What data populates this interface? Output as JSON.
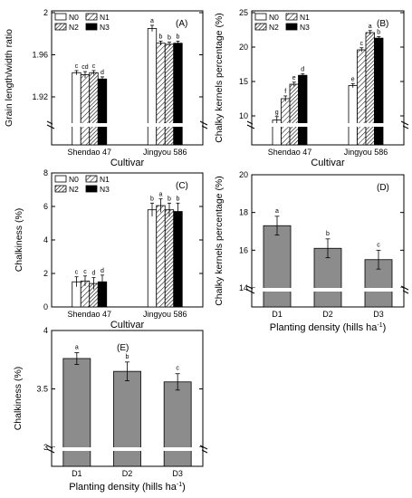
{
  "chart_data": [
    {
      "type": "bar",
      "panel_label": "(A)",
      "xlabel": "Cultivar",
      "ylabel": "Grain length/width ratio",
      "categories": [
        "Shendao 47",
        "Jingyou 586"
      ],
      "ylim": [
        1.9,
        2.0
      ],
      "yticks": [
        "1.92",
        "1.96",
        "2"
      ],
      "axis_break": true,
      "legend": [
        "N0",
        "N1",
        "N2",
        "N3"
      ],
      "legend_position": "top-left",
      "series": [
        {
          "name": "N0",
          "values": [
            1.943,
            1.985
          ],
          "errors": [
            0.002,
            0.003
          ],
          "letters": [
            "c",
            "a"
          ]
        },
        {
          "name": "N1",
          "values": [
            1.941,
            1.971
          ],
          "errors": [
            0.003,
            0.002
          ],
          "letters": [
            "cd",
            "b"
          ]
        },
        {
          "name": "N2",
          "values": [
            1.943,
            1.97
          ],
          "errors": [
            0.002,
            0.002
          ],
          "letters": [
            "c",
            "b"
          ]
        },
        {
          "name": "N3",
          "values": [
            1.937,
            1.971
          ],
          "errors": [
            0.002,
            0.002
          ],
          "letters": [
            "d",
            "b"
          ]
        }
      ]
    },
    {
      "type": "bar",
      "panel_label": "(B)",
      "xlabel": "Cultivar",
      "ylabel": "Chalky kernels percentage (%)",
      "categories": [
        "Shendao 47",
        "Jingyou 586"
      ],
      "ylim": [
        0,
        25
      ],
      "yticks": [
        "10",
        "15",
        "20",
        "25"
      ],
      "axis_break": true,
      "legend": [
        "N0",
        "N1",
        "N2",
        "N3"
      ],
      "legend_position": "top-left",
      "series": [
        {
          "name": "N0",
          "values": [
            9.4,
            14.4
          ],
          "errors": [
            0.5,
            0.3
          ],
          "letters": [
            "g",
            "e"
          ]
        },
        {
          "name": "N1",
          "values": [
            12.5,
            19.6
          ],
          "errors": [
            0.4,
            0.3
          ],
          "letters": [
            "f",
            "c"
          ]
        },
        {
          "name": "N2",
          "values": [
            14.6,
            22.1
          ],
          "errors": [
            0.3,
            0.3
          ],
          "letters": [
            "e",
            "a"
          ]
        },
        {
          "name": "N3",
          "values": [
            15.9,
            21.3
          ],
          "errors": [
            0.2,
            0.2
          ],
          "letters": [
            "d",
            "b"
          ]
        }
      ]
    },
    {
      "type": "bar",
      "panel_label": "(C)",
      "xlabel": "Cultivar",
      "ylabel": "Chalkiness (%)",
      "categories": [
        "Shendao 47",
        "Jingyou 586"
      ],
      "ylim": [
        0,
        8
      ],
      "yticks": [
        "0",
        "2",
        "4",
        "6",
        "8"
      ],
      "axis_break": false,
      "legend": [
        "N0",
        "N1",
        "N2",
        "N3"
      ],
      "legend_position": "top-left",
      "series": [
        {
          "name": "N0",
          "values": [
            1.5,
            5.8
          ],
          "errors": [
            0.3,
            0.4
          ],
          "letters": [
            "c",
            "b"
          ]
        },
        {
          "name": "N1",
          "values": [
            1.55,
            6.05
          ],
          "errors": [
            0.3,
            0.4
          ],
          "letters": [
            "c",
            "a"
          ]
        },
        {
          "name": "N2",
          "values": [
            1.4,
            5.8
          ],
          "errors": [
            0.35,
            0.4
          ],
          "letters": [
            "d",
            "b"
          ]
        },
        {
          "name": "N3",
          "values": [
            1.5,
            5.7
          ],
          "errors": [
            0.4,
            0.5
          ],
          "letters": [
            "d",
            "b"
          ]
        }
      ]
    },
    {
      "type": "bar",
      "panel_label": "(D)",
      "xlabel": "Planting density (hills ha",
      "xlabel_sup": "-1",
      "xlabel_tail": ")",
      "ylabel": "Chalky kernels percentage (%)",
      "categories": [
        "D1",
        "D2",
        "D3"
      ],
      "ylim": [
        13,
        20
      ],
      "yticks": [
        "14",
        "16",
        "18",
        "20"
      ],
      "axis_break": true,
      "values": [
        17.3,
        16.1,
        15.5
      ],
      "errors": [
        0.5,
        0.5,
        0.5
      ],
      "letters": [
        "a",
        "b",
        "c"
      ]
    },
    {
      "type": "bar",
      "panel_label": "(E)",
      "xlabel": "Planting density (hills ha",
      "xlabel_sup": "-1",
      "xlabel_tail": ")",
      "ylabel": "Chalkiness (%)",
      "categories": [
        "D1",
        "D2",
        "D3"
      ],
      "ylim": [
        2.95,
        4.0
      ],
      "yticks": [
        "3",
        "3.5",
        "4"
      ],
      "axis_break": true,
      "values": [
        3.76,
        3.65,
        3.56
      ],
      "errors": [
        0.05,
        0.08,
        0.07
      ],
      "letters": [
        "a",
        "b",
        "c"
      ]
    }
  ]
}
